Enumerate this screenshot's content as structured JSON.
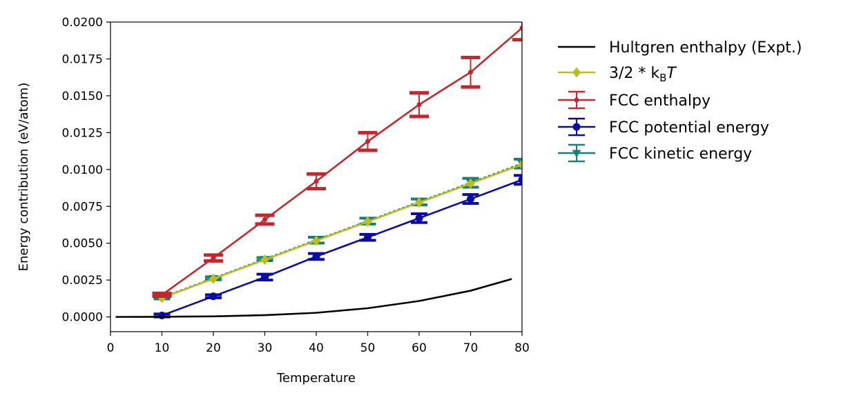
{
  "chart_data": {
    "type": "line",
    "title": "",
    "xlabel": "Temperature",
    "ylabel": "Energy contribution (eV/atom)",
    "xlim": [
      0,
      80
    ],
    "ylim": [
      -0.001,
      0.02
    ],
    "xticks": [
      "0",
      "10",
      "20",
      "30",
      "40",
      "50",
      "60",
      "70",
      "80"
    ],
    "yticks": [
      "0.0000",
      "0.0025",
      "0.0050",
      "0.0075",
      "0.0100",
      "0.0125",
      "0.0150",
      "0.0175",
      "0.0200"
    ],
    "legend_position": "outside-right",
    "series": [
      {
        "name": "Hultgren enthalpy (Expt.)",
        "color": "#000000",
        "marker": "none",
        "x": [
          1,
          10,
          20,
          30,
          40,
          50,
          60,
          70,
          78
        ],
        "values": [
          0.0,
          1e-05,
          4e-05,
          0.00012,
          0.00028,
          0.00059,
          0.00108,
          0.00178,
          0.00257
        ]
      },
      {
        "name": "3/2 * k_B T",
        "legend_label_parts": [
          "3/2 * k",
          "B",
          "T"
        ],
        "color": "#bcbd22",
        "marker": "diamond",
        "x": [
          10,
          20,
          30,
          40,
          50,
          60,
          70,
          80
        ],
        "values": [
          0.00129,
          0.00259,
          0.00388,
          0.00517,
          0.00646,
          0.00776,
          0.00905,
          0.01034
        ]
      },
      {
        "name": "FCC enthalpy",
        "color": "#c0282e",
        "marker": "dot",
        "x": [
          10,
          20,
          30,
          40,
          50,
          60,
          70,
          80
        ],
        "values": [
          0.0015,
          0.004,
          0.0066,
          0.0092,
          0.0119,
          0.0144,
          0.0166,
          0.0196
        ],
        "errors": [
          0.0001,
          0.0002,
          0.0003,
          0.0005,
          0.0006,
          0.0008,
          0.001,
          0.0008
        ]
      },
      {
        "name": "FCC potential energy",
        "color": "#0a0aa8",
        "marker": "circle",
        "x": [
          10,
          20,
          30,
          40,
          50,
          60,
          70,
          80
        ],
        "values": [
          0.0001,
          0.0014,
          0.0027,
          0.0041,
          0.0054,
          0.0067,
          0.008,
          0.0093
        ],
        "errors": [
          0.0001,
          0.0001,
          0.0002,
          0.0002,
          0.0002,
          0.0003,
          0.0003,
          0.0003
        ]
      },
      {
        "name": "FCC kinetic energy",
        "color": "#167e72",
        "marker": "triangle",
        "x": [
          10,
          20,
          30,
          40,
          50,
          60,
          70,
          80
        ],
        "values": [
          0.00132,
          0.00262,
          0.00392,
          0.00521,
          0.0065,
          0.0078,
          0.0091,
          0.0104
        ],
        "errors": [
          0.0001,
          0.0001,
          0.0001,
          0.0002,
          0.0002,
          0.0002,
          0.0003,
          0.0003
        ]
      }
    ]
  }
}
